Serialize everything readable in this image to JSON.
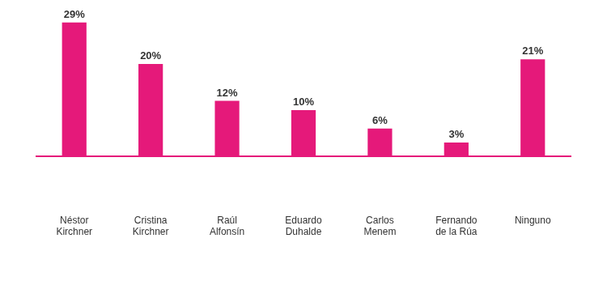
{
  "chart_data": {
    "type": "bar",
    "categories": [
      "Néstor Kirchner",
      "Cristina Kirchner",
      "Raúl Alfonsín",
      "Eduardo Duhalde",
      "Carlos Menem",
      "Fernando de la Rúa",
      "Ninguno"
    ],
    "values": [
      29,
      20,
      12,
      10,
      6,
      3,
      21
    ],
    "value_labels": [
      "29%",
      "20%",
      "12%",
      "10%",
      "6%",
      "3%",
      "21%"
    ],
    "color": "#e5197a",
    "data_labels": true,
    "grid": false,
    "tick_labels": "x"
  }
}
